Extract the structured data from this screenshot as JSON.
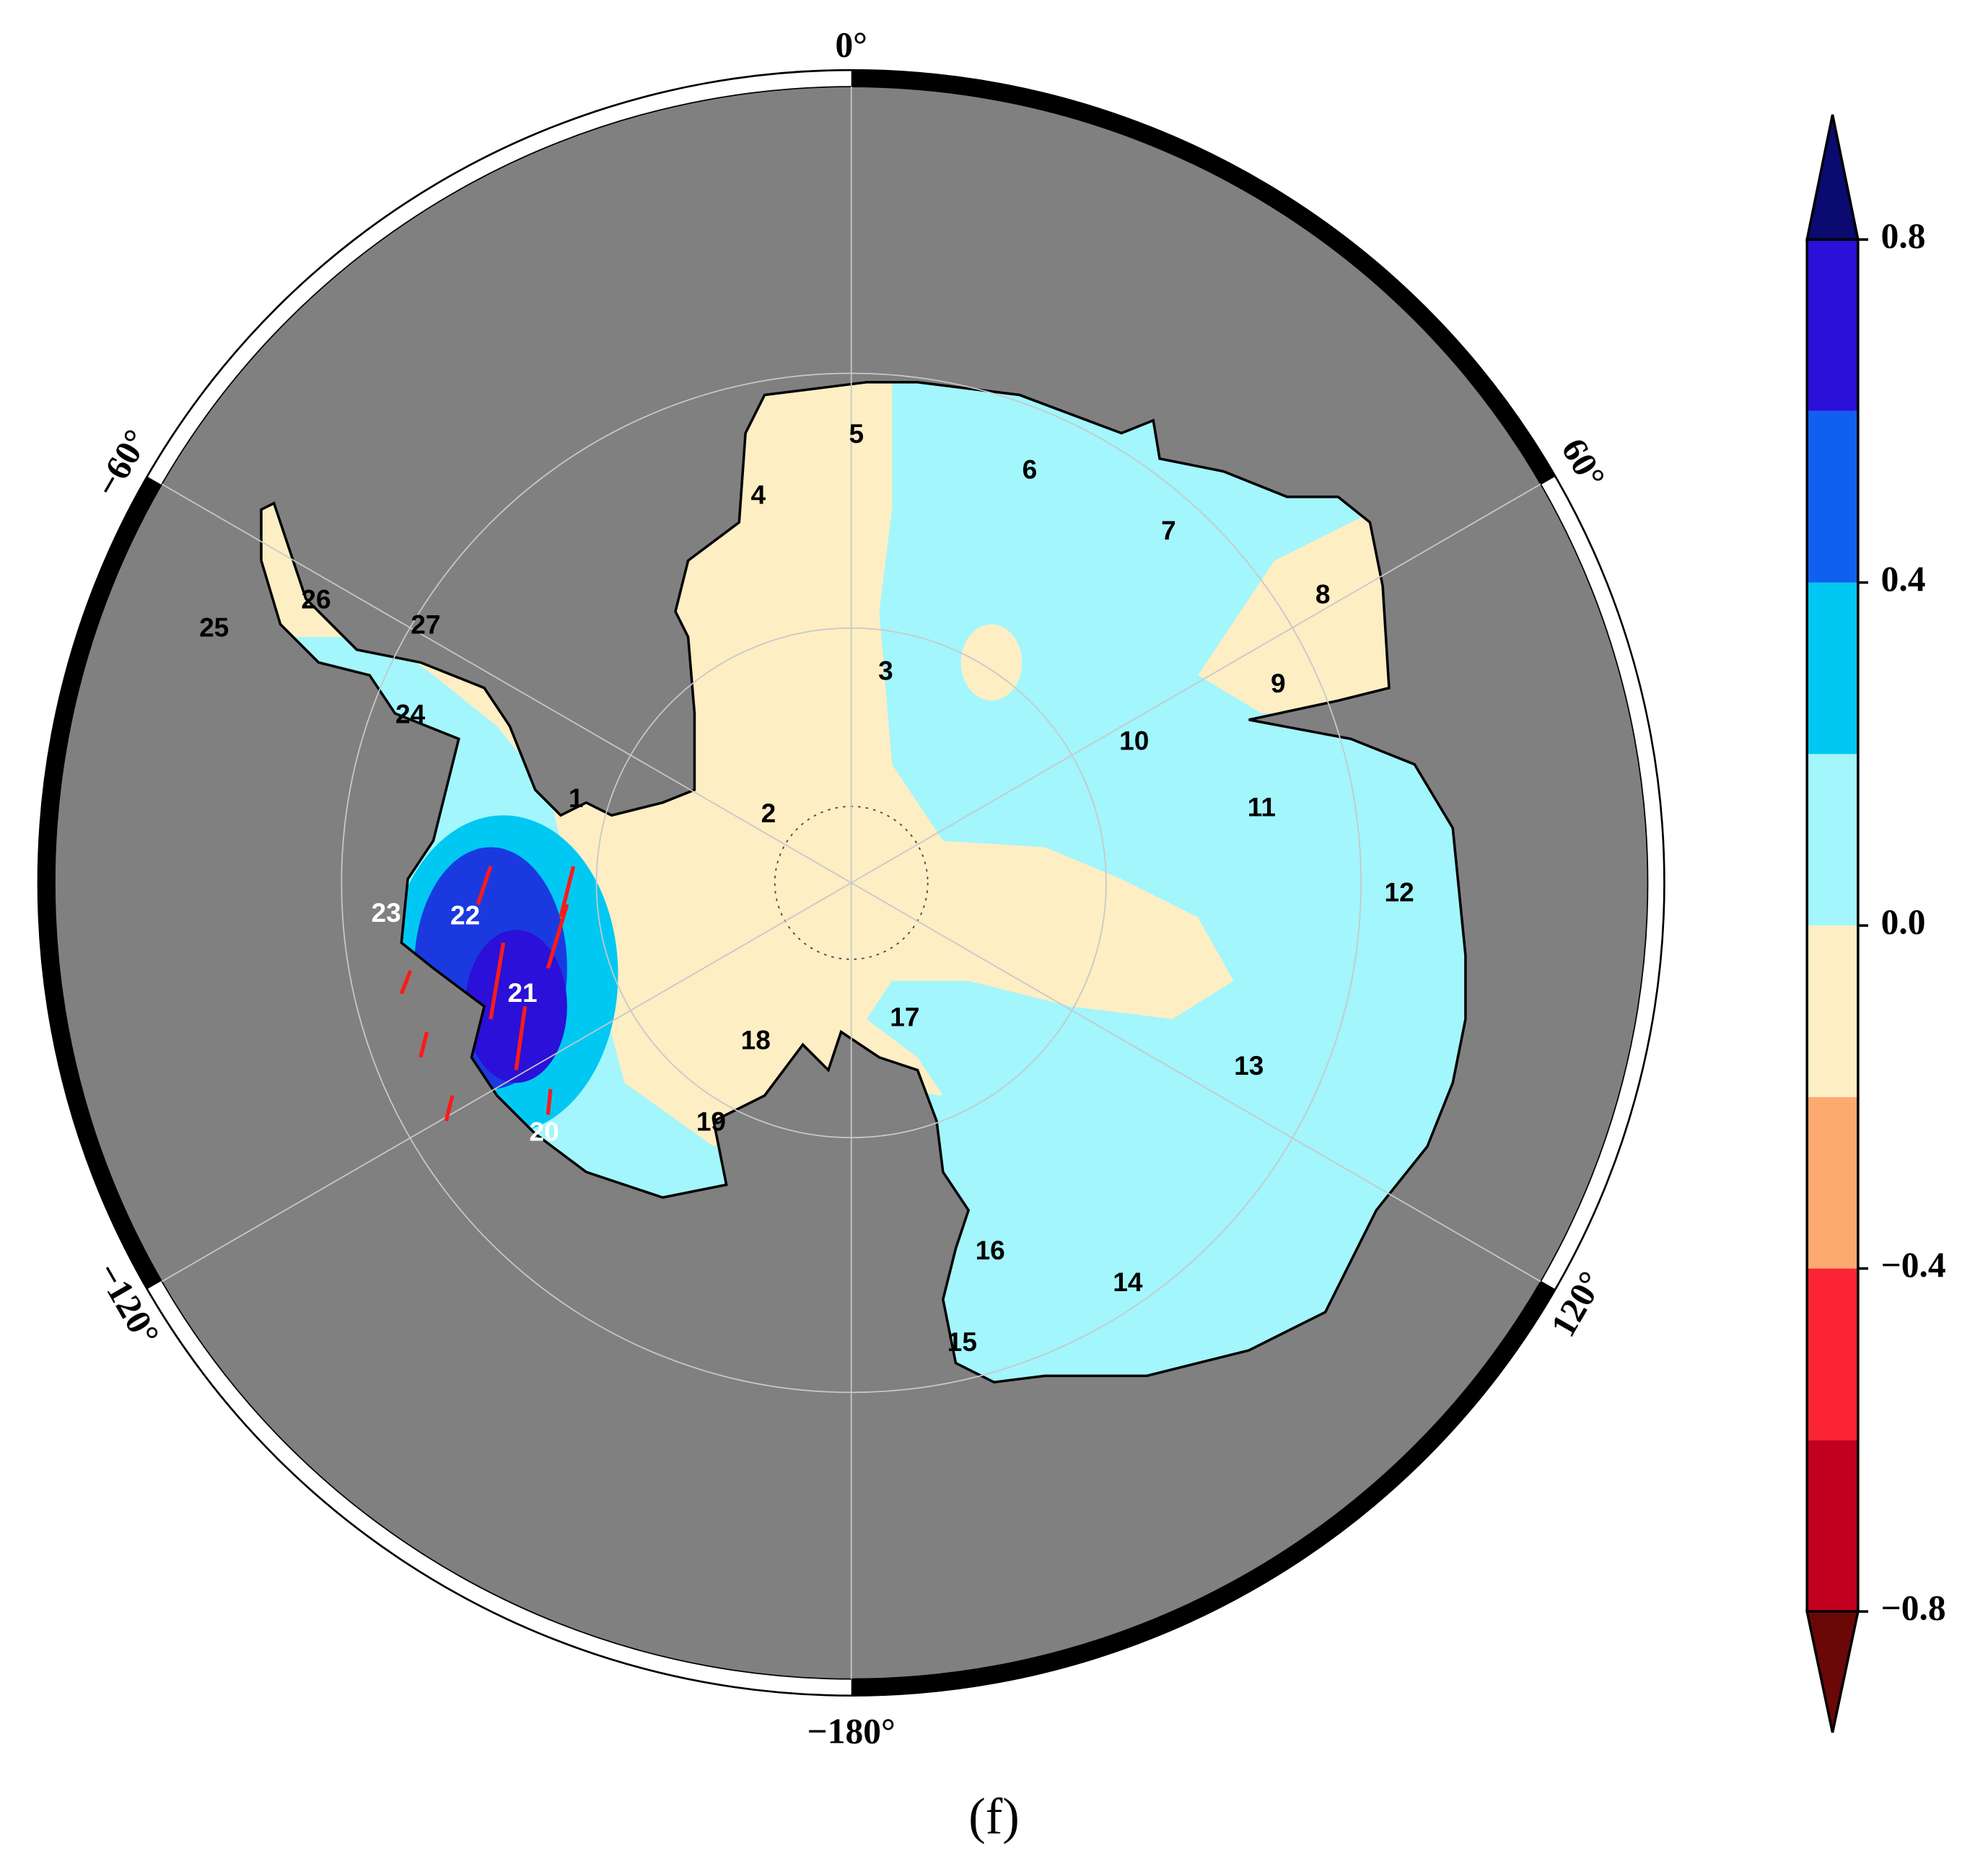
{
  "map": {
    "longitude_labels": [
      "0°",
      "60°",
      "120°",
      "−180°",
      "−120°",
      "−60°"
    ],
    "basins": [
      "1",
      "2",
      "3",
      "4",
      "5",
      "6",
      "7",
      "8",
      "9",
      "10",
      "11",
      "12",
      "13",
      "14",
      "15",
      "16",
      "17",
      "18",
      "19",
      "20",
      "21",
      "22",
      "23",
      "24",
      "25",
      "26",
      "27"
    ]
  },
  "colorbar": {
    "lim": [
      -0.8,
      0.8
    ],
    "ticks": [
      0.8,
      0.4,
      {
        "value": 0,
        "label": "0.0"
      },
      {
        "value": -0.4,
        "label": "−0.4"
      },
      {
        "value": -0.8,
        "label": "−0.8"
      }
    ],
    "levels": [
      -0.8,
      -0.6,
      -0.4,
      -0.2,
      0,
      0.2,
      0.4,
      0.6,
      0.8
    ],
    "colors": [
      "#c0001e",
      "#fb2434",
      "#fcaa70",
      "#fdeec4",
      "#a2f6fc",
      "#00c8f2",
      "#1060f0",
      "#2a10d8"
    ],
    "extend_colors": [
      "#6a0808",
      "#0a0a70"
    ]
  },
  "caption": "(f)"
}
